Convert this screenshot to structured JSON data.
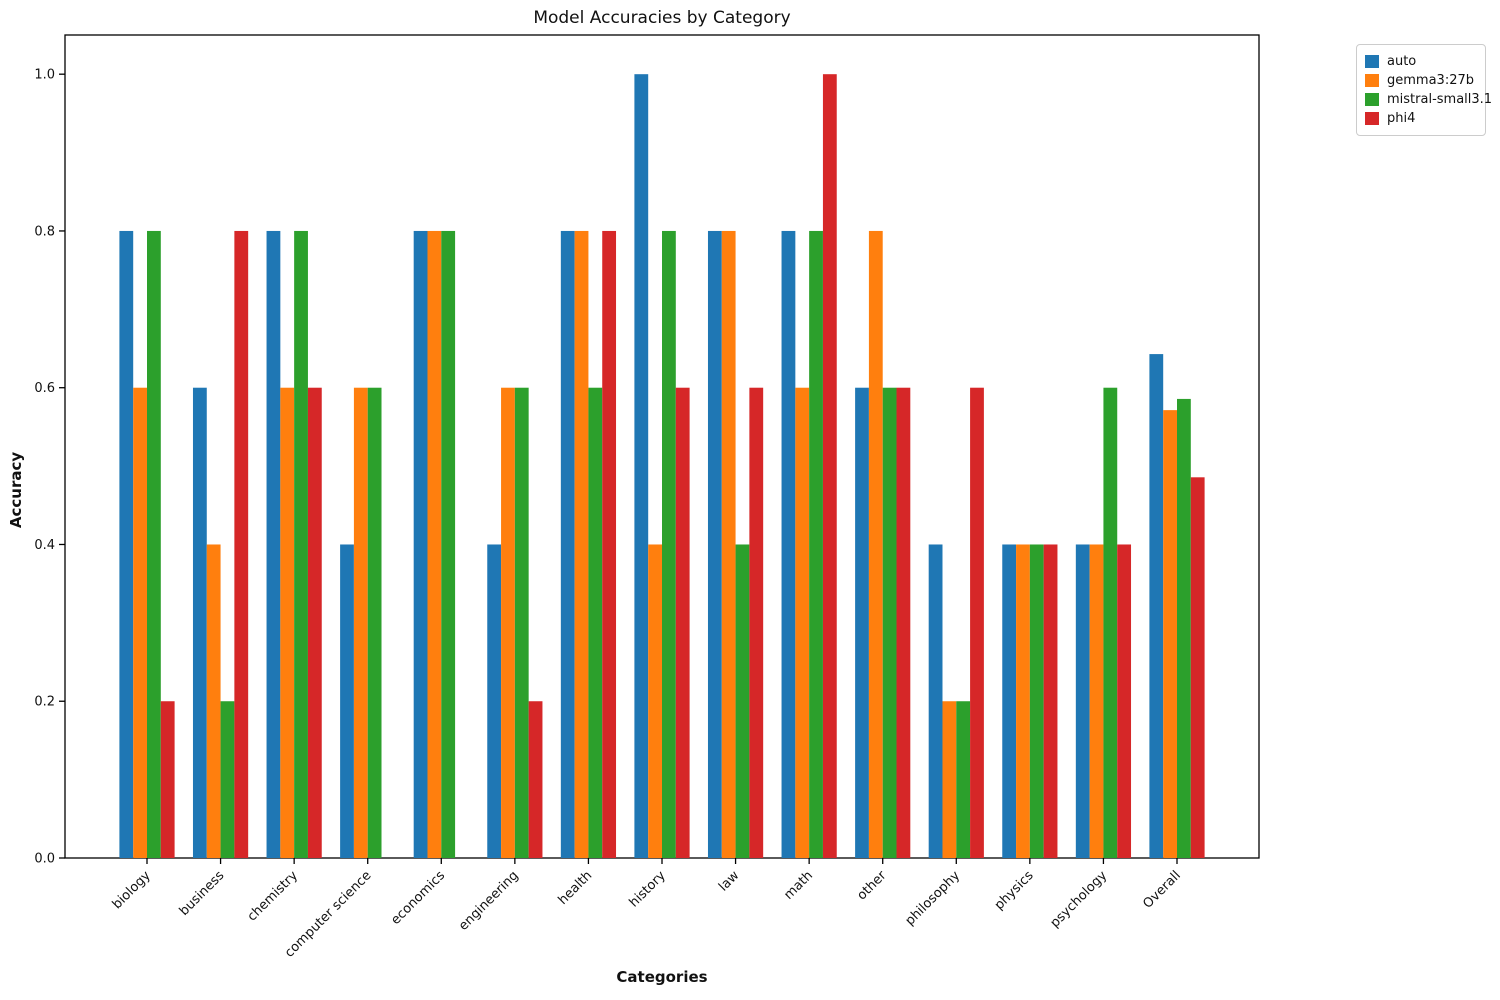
{
  "title": "Model Accuracies by Category",
  "chart_data": {
    "type": "bar",
    "title": "Model Accuracies by Category",
    "xlabel": "Categories",
    "ylabel": "Accuracy",
    "categories": [
      "biology",
      "business",
      "chemistry",
      "computer science",
      "economics",
      "engineering",
      "health",
      "history",
      "law",
      "math",
      "other",
      "philosophy",
      "physics",
      "psychology",
      "Overall"
    ],
    "series": [
      {
        "name": "auto",
        "color": "#1f77b4",
        "values": [
          0.8,
          0.6,
          0.8,
          0.4,
          0.8,
          0.4,
          0.8,
          1.0,
          0.8,
          0.8,
          0.6,
          0.4,
          0.4,
          0.4,
          0.6429
        ]
      },
      {
        "name": "gemma3:27b",
        "color": "#ff7f0e",
        "values": [
          0.6,
          0.4,
          0.6,
          0.6,
          0.8,
          0.6,
          0.8,
          0.4,
          0.8,
          0.6,
          0.8,
          0.2,
          0.4,
          0.4,
          0.5714
        ]
      },
      {
        "name": "mistral-small3.1",
        "color": "#2ca02c",
        "values": [
          0.8,
          0.2,
          0.8,
          0.6,
          0.8,
          0.6,
          0.6,
          0.8,
          0.4,
          0.8,
          0.6,
          0.2,
          0.4,
          0.6,
          0.5857
        ]
      },
      {
        "name": "phi4",
        "color": "#d62728",
        "values": [
          0.2,
          0.8,
          0.6,
          0.0,
          0.0,
          0.2,
          0.8,
          0.6,
          0.6,
          1.0,
          0.6,
          0.6,
          0.4,
          0.4,
          0.4857
        ]
      }
    ],
    "yticks": [
      0.0,
      0.2,
      0.4,
      0.6,
      0.8,
      1.0
    ],
    "ylim": [
      0,
      1.05
    ],
    "grid": false,
    "legend_position": "upper-right-outside",
    "axis_color": "#000000",
    "background_color": "#ffffff"
  }
}
